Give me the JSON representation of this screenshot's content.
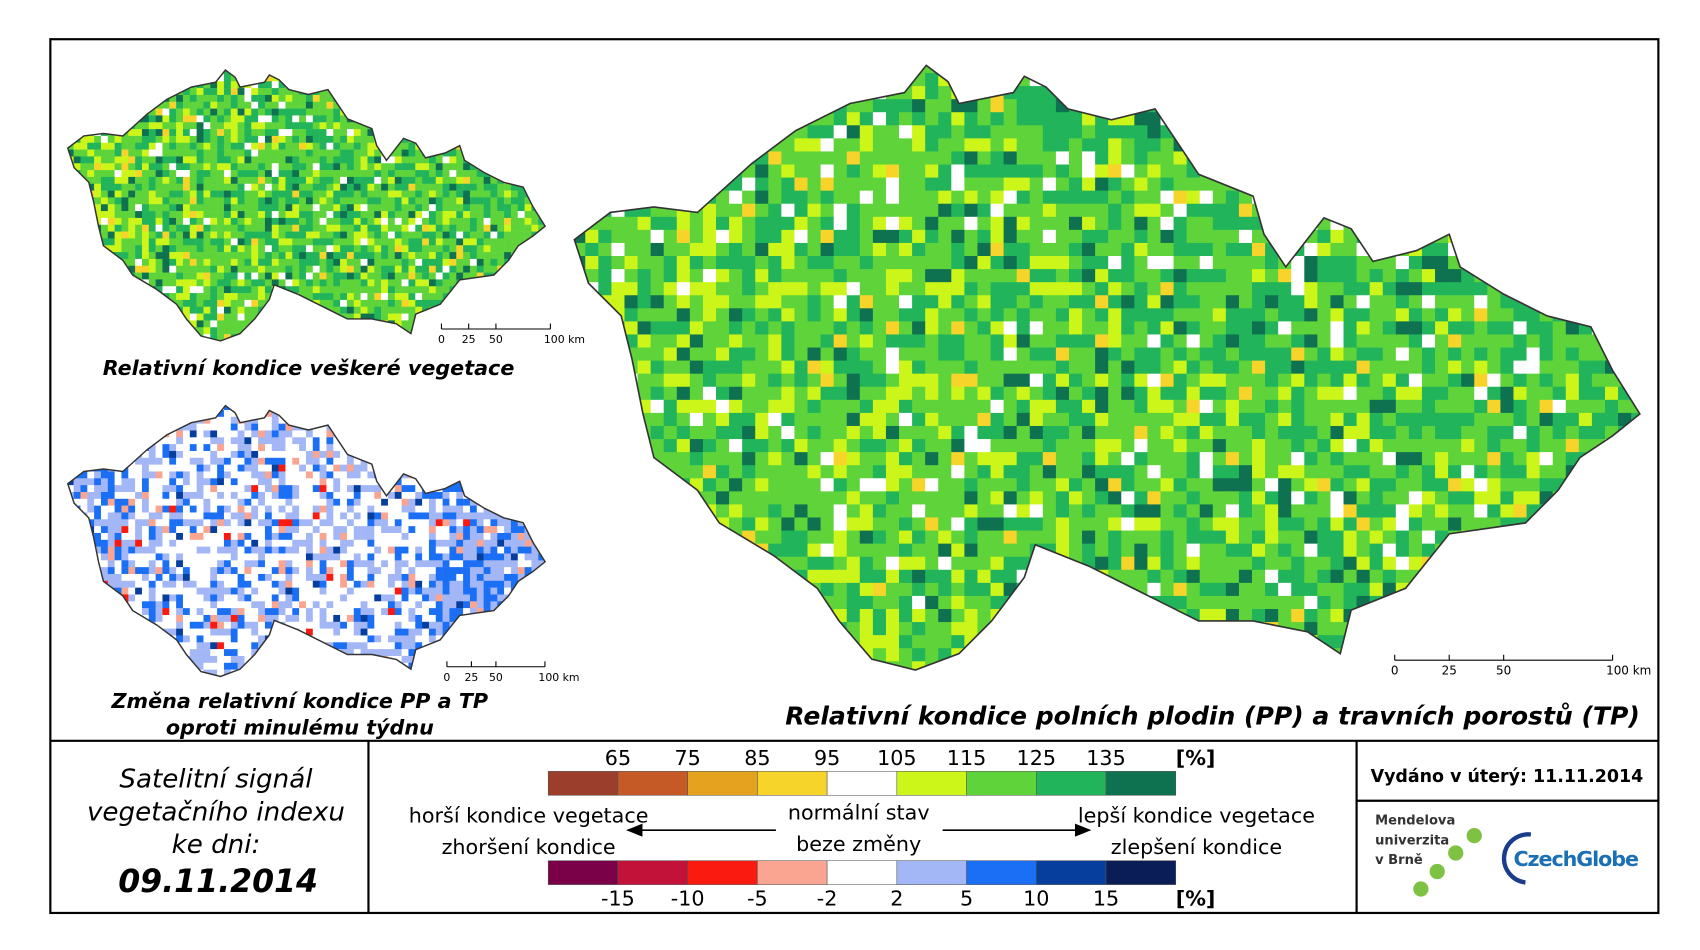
{
  "titles": {
    "main": "Relativní kondice polních plodin (PP) a travních porostů (TP)",
    "all_vegetation": "Relativní kondice veškeré vegetace",
    "change": [
      "Změna relativní kondice PP a TP",
      "oproti minulému týdnu"
    ]
  },
  "scale_bar": {
    "labels": [
      "0",
      "25",
      "50",
      "100 km"
    ]
  },
  "legend": {
    "condition": {
      "ticks": [
        65,
        75,
        85,
        95,
        105,
        115,
        125,
        135
      ],
      "unit": "[%]",
      "colors": [
        "#9b3f2c",
        "#c55a26",
        "#e5a21e",
        "#f7d42a",
        "#ffffff",
        "#ccf51a",
        "#5ed43a",
        "#22b45a",
        "#0e7250"
      ]
    },
    "change": {
      "ticks": [
        -15,
        -10,
        -5,
        -2,
        2,
        5,
        10,
        15
      ],
      "unit": "[%]",
      "colors": [
        "#7a0048",
        "#c3123a",
        "#fa1a10",
        "#f9a591",
        "#ffffff",
        "#a3b6f5",
        "#1a6ff5",
        "#063e9e",
        "#0a1d57"
      ]
    },
    "worse": [
      "horší kondice vegetace",
      "zhoršení kondice"
    ],
    "normal": [
      "normální stav",
      "beze změny"
    ],
    "better": [
      "lepší kondice vegetace",
      "zlepšení kondice"
    ]
  },
  "date_box": {
    "lines": [
      "Satelitní signál",
      "vegetačního indexu",
      "ke dni:"
    ],
    "date": "09.11.2014"
  },
  "issued": "Vydáno v úterý: 11.11.2014",
  "logos": {
    "mendel": [
      "Mendelova",
      "univerzita",
      "v Brně"
    ],
    "czechglobe": "CzechGlobe"
  }
}
